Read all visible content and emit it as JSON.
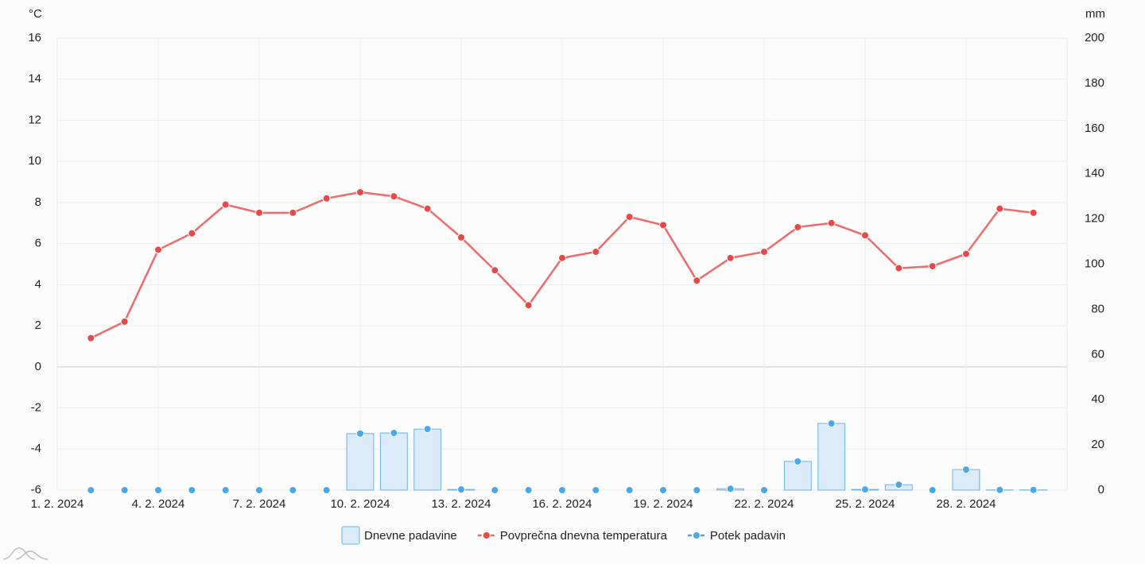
{
  "chart_data": {
    "type": "line",
    "ylabel": "°C",
    "y2label": "mm",
    "x": [
      2,
      3,
      4,
      5,
      6,
      7,
      8,
      9,
      10,
      11,
      12,
      13,
      14,
      15,
      16,
      17,
      18,
      19,
      20,
      21,
      22,
      23,
      24,
      25,
      26,
      27,
      28,
      29,
      30
    ],
    "xlim": [
      1,
      31
    ],
    "xticks": [
      {
        "value": 1,
        "label": "1. 2. 2024"
      },
      {
        "value": 4,
        "label": "4. 2. 2024"
      },
      {
        "value": 7,
        "label": "7. 2. 2024"
      },
      {
        "value": 10,
        "label": "10. 2. 2024"
      },
      {
        "value": 13,
        "label": "13. 2. 2024"
      },
      {
        "value": 16,
        "label": "16. 2. 2024"
      },
      {
        "value": 19,
        "label": "19. 2. 2024"
      },
      {
        "value": 22,
        "label": "22. 2. 2024"
      },
      {
        "value": 25,
        "label": "25. 2. 2024"
      },
      {
        "value": 28,
        "label": "28. 2. 2024"
      }
    ],
    "ylim": [
      -6,
      16
    ],
    "yticks": [
      -6,
      -4,
      -2,
      0,
      2,
      4,
      6,
      8,
      10,
      12,
      14,
      16
    ],
    "y2lim": [
      0,
      200
    ],
    "y2ticks": [
      0,
      20,
      40,
      60,
      80,
      100,
      120,
      140,
      160,
      180,
      200
    ],
    "grid": true,
    "legend": "bottom",
    "series": [
      {
        "name": "Dnevne padavine",
        "type": "bar",
        "axis": "y2",
        "color": "#6ab4e6",
        "values": [
          0,
          0,
          0,
          0,
          0,
          0,
          0,
          0,
          25,
          25.3,
          27,
          0.3,
          0,
          0,
          0,
          0,
          0,
          0,
          0,
          0.6,
          0,
          12.7,
          29.5,
          0.3,
          2.4,
          0,
          9.1,
          0.1,
          0.1
        ]
      },
      {
        "name": "Povprečna dnevna temperatura",
        "type": "line",
        "color": "#ef6b6b",
        "values": [
          1.4,
          2.2,
          5.7,
          6.5,
          7.9,
          7.5,
          7.5,
          8.2,
          8.5,
          8.3,
          7.7,
          6.3,
          4.7,
          3.0,
          5.3,
          5.6,
          7.3,
          6.9,
          4.2,
          5.3,
          5.6,
          6.8,
          7.0,
          6.4,
          4.8,
          4.9,
          5.5,
          7.7,
          7.5
        ]
      },
      {
        "name": "Potek padavin",
        "type": "scatter",
        "axis": "y2",
        "color": "#4aa8e8",
        "values": [
          0,
          0,
          0,
          0,
          0,
          0,
          0,
          0,
          25,
          25.3,
          27,
          0.3,
          0,
          0,
          0,
          0,
          0,
          0,
          0,
          0.6,
          0,
          12.7,
          29.5,
          0.3,
          2.4,
          0,
          9.1,
          0.1,
          0.1
        ]
      }
    ]
  }
}
